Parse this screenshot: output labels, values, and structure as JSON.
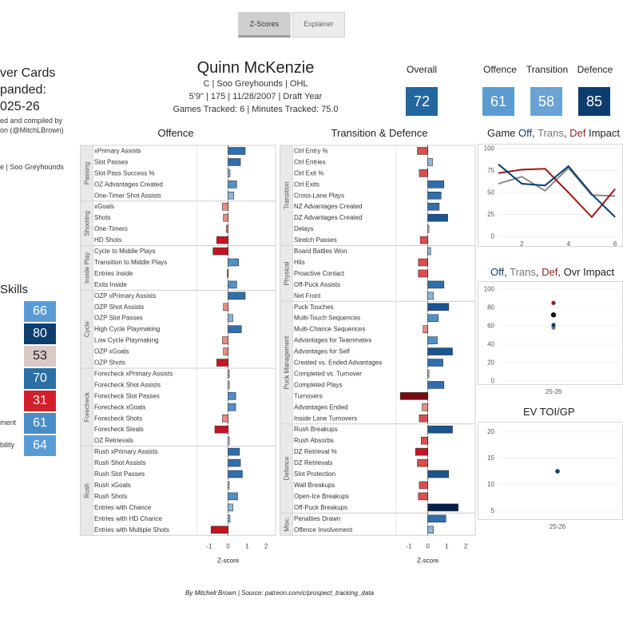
{
  "tabs": [
    {
      "label": "Z-Scores",
      "active": true
    },
    {
      "label": "Explainer",
      "active": false
    }
  ],
  "left_title": [
    "ver Cards",
    "panded:",
    "025-26"
  ],
  "left_credit": [
    "ed and compiled by",
    "on (@MitchLBrown)"
  ],
  "left_team": "e | Soo Greyhounds",
  "skills": {
    "title": "Skills",
    "values": [
      66,
      80,
      53,
      70,
      31,
      61,
      64
    ],
    "colors": [
      "#5b9bd5",
      "#0f3d6e",
      "#d9c9c6",
      "#2a6fa5",
      "#d1202b",
      "#4a8cc5",
      "#5b9bd5"
    ],
    "partial_labels": [
      "",
      "",
      "",
      "",
      "",
      "ment",
      "bility"
    ]
  },
  "player": {
    "name": "Quinn McKenzie",
    "line1": "C | Soo Greyhounds | OHL",
    "line2": "5'9\" | 175 | 11/28/2007 |  Draft Year",
    "line3": "Games Tracked: 6 | Minutes Tracked: 75.0"
  },
  "scores": [
    {
      "label": "Overall",
      "value": 72,
      "color": "#2266a0"
    },
    {
      "label": "Offence",
      "value": 61,
      "color": "#5b9bd0"
    },
    {
      "label": "Transition",
      "value": 58,
      "color": "#6aa3d4"
    },
    {
      "label": "Defence",
      "value": 85,
      "color": "#0d3d6e"
    }
  ],
  "footer": "By Mitchell Brown | Source: patreon.com/c/prospect_tracking_data",
  "chart_data": [
    {
      "type": "bar",
      "title": "Offence",
      "xlabel": "Z-score",
      "xlim": [
        -1.5,
        2.5
      ],
      "xticks": [
        -1,
        0,
        1,
        2
      ],
      "groups": [
        {
          "name": "Passing",
          "items": [
            [
              "xPrimary Assists",
              0.9
            ],
            [
              "Slot Passes",
              0.65
            ],
            [
              "Slot Pass Success %",
              0.1
            ],
            [
              "OZ Advantages Created",
              0.45
            ],
            [
              "One-Timer Shot Assists",
              0.3
            ]
          ]
        },
        {
          "name": "Shooting",
          "items": [
            [
              "xGoals",
              -0.3
            ],
            [
              "Shots",
              -0.25
            ],
            [
              "One-Timers",
              -0.1
            ],
            [
              "HD Shots",
              -0.6
            ]
          ]
        },
        {
          "name": "Inside Play",
          "items": [
            [
              "Cycle to Middle Plays",
              -0.8
            ],
            [
              "Transition to Middle Plays",
              0.55
            ],
            [
              "Entries Inside",
              -0.05
            ],
            [
              "Exits Inside",
              0.45
            ]
          ]
        },
        {
          "name": "Cycle",
          "items": [
            [
              "OZP xPrimary Assists",
              0.9
            ],
            [
              "OZP Shot Assists",
              -0.25
            ],
            [
              "OZP Slot Passes",
              0.25
            ],
            [
              "High Cycle Playmaking",
              0.7
            ],
            [
              "Low Cycle Playmaking",
              -0.3
            ],
            [
              "OZP xGoals",
              -0.25
            ],
            [
              "OZP Shots",
              -0.6
            ]
          ]
        },
        {
          "name": "Forecheck",
          "items": [
            [
              "Forecheck xPrimary Assists",
              0.0
            ],
            [
              "Forecheck Shot Assists",
              0.0
            ],
            [
              "Forecheck Slot Passes",
              0.4
            ],
            [
              "Forecheck xGoals",
              0.4
            ],
            [
              "Forecheck Shots",
              -0.3
            ],
            [
              "Forecheck Steals",
              -0.7
            ],
            [
              "OZ Retrievals",
              0.0
            ]
          ]
        },
        {
          "name": "Rush",
          "items": [
            [
              "Rush xPrimary Assists",
              0.6
            ],
            [
              "Rush Shot Assists",
              0.65
            ],
            [
              "Rush Slot Passes",
              0.75
            ],
            [
              "Rush xGoals",
              0.05
            ],
            [
              "Rush Shots",
              0.5
            ],
            [
              "Entries with Chance",
              0.25
            ],
            [
              "Entries with HD Chance",
              0.1
            ],
            [
              "Entries with Multiple Shots",
              -0.9
            ]
          ]
        }
      ]
    },
    {
      "type": "bar",
      "title": "Transition & Defence",
      "xlabel": "Z-score",
      "xlim": [
        -1.5,
        2.5
      ],
      "xticks": [
        -1,
        0,
        1,
        2
      ],
      "groups": [
        {
          "name": "Transition",
          "items": [
            [
              "Ctrl Entry %",
              -0.55
            ],
            [
              "Ctrl Entries",
              0.25
            ],
            [
              "Ctrl Exit %",
              -0.45
            ],
            [
              "Ctrl Exits",
              0.85
            ],
            [
              "Cross-Lane Plays",
              0.7
            ],
            [
              "NZ Advantages Created",
              0.6
            ],
            [
              "DZ Advantages Created",
              1.05
            ],
            [
              "Delays",
              0.0
            ],
            [
              "Stretch Passes",
              -0.4
            ]
          ]
        },
        {
          "name": "Physical",
          "items": [
            [
              "Board Battles Won",
              0.15
            ],
            [
              "Hits",
              -0.5
            ],
            [
              "Proactive Contact",
              -0.5
            ],
            [
              "Off-Puck Assists",
              0.85
            ],
            [
              "Net Front",
              0.3
            ]
          ]
        },
        {
          "name": "Puck Management",
          "items": [
            [
              "Puck Touches",
              1.1
            ],
            [
              "Multi-Touch Sequences",
              0.55
            ],
            [
              "Multi-Chance Sequences",
              -0.25
            ],
            [
              "Advantages for Teammates",
              0.5
            ],
            [
              "Advantages for Self",
              1.3
            ],
            [
              "Created vs. Ended Advantages",
              0.8
            ],
            [
              "Completed vs. Turnover",
              0.0
            ],
            [
              "Completed Plays",
              0.85
            ],
            [
              "Turnovers",
              -1.45
            ],
            [
              "Advantages Ended",
              -0.3
            ],
            [
              "Inside Lane Turnovers",
              -0.45
            ]
          ]
        },
        {
          "name": "Defence",
          "items": [
            [
              "Rush Breakups",
              1.3
            ],
            [
              "Rush Absorbs",
              -0.35
            ],
            [
              "DZ Retrieval %",
              -0.65
            ],
            [
              "DZ Retrievals",
              -0.55
            ],
            [
              "Slot Protection",
              1.1
            ],
            [
              "Wall Breakups",
              -0.45
            ],
            [
              "Open-Ice Breakups",
              -0.5
            ],
            [
              "Off-Puck Breakups",
              1.6
            ]
          ]
        },
        {
          "name": "Misc.",
          "items": [
            [
              "Penalties Drawn",
              0.95
            ],
            [
              "Offence Involvement",
              0.3
            ]
          ]
        }
      ]
    },
    {
      "type": "line",
      "title_parts": [
        "Game ",
        "Off",
        ", ",
        "Trans",
        ", ",
        "Def",
        " Impact"
      ],
      "x": [
        1,
        2,
        3,
        4,
        5,
        6
      ],
      "xticks": [
        2,
        4,
        6
      ],
      "yticks": [
        0,
        25,
        50,
        75,
        100
      ],
      "ylim": [
        0,
        100
      ],
      "series": [
        {
          "name": "Off",
          "color": "#0b3c6b",
          "values": [
            82,
            60,
            58,
            80,
            48,
            22
          ]
        },
        {
          "name": "Trans",
          "color": "#888888",
          "values": [
            60,
            68,
            52,
            78,
            47,
            46
          ]
        },
        {
          "name": "Def",
          "color": "#9b1c1c",
          "values": [
            72,
            76,
            77,
            50,
            22,
            54
          ]
        }
      ]
    },
    {
      "type": "scatter",
      "title_parts": [
        "Off",
        ", ",
        "Trans",
        ", ",
        "Def",
        ", ",
        "Ovr",
        " Impact"
      ],
      "categories": [
        "25-26"
      ],
      "yticks": [
        0,
        20,
        40,
        60,
        80,
        100
      ],
      "ylim": [
        0,
        100
      ],
      "points": [
        {
          "name": "Def",
          "value": 85,
          "color": "#9b1c1c"
        },
        {
          "name": "Ovr",
          "value": 72,
          "color": "#111111"
        },
        {
          "name": "Trans",
          "value": 58,
          "color": "#777777"
        },
        {
          "name": "Off",
          "value": 61,
          "color": "#0b3c6b"
        }
      ]
    },
    {
      "type": "scatter",
      "title": "EV TOI/GP",
      "categories": [
        "25-26"
      ],
      "yticks": [
        5,
        10,
        15,
        20
      ],
      "ylim": [
        4,
        21
      ],
      "points": [
        {
          "value": 12.5,
          "color": "#0b3c6b"
        }
      ]
    }
  ]
}
